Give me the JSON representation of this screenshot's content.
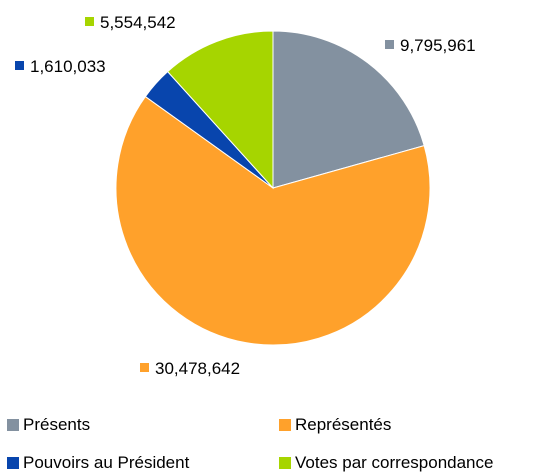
{
  "chart_data": {
    "type": "pie",
    "title": "",
    "legend_position": "bottom",
    "slices": [
      {
        "label": "Présents",
        "value": 9795961,
        "value_text": "9,795,961",
        "color": "#8391a0"
      },
      {
        "label": "Représentés",
        "value": 30478642,
        "value_text": "30,478,642",
        "color": "#ffa12b"
      },
      {
        "label": "Pouvoirs au Président",
        "value": 1610033,
        "value_text": "1,610,033",
        "color": "#0845ad"
      },
      {
        "label": "Votes par correspondance",
        "value": 5554542,
        "value_text": "5,554,542",
        "color": "#a6d500"
      }
    ]
  }
}
